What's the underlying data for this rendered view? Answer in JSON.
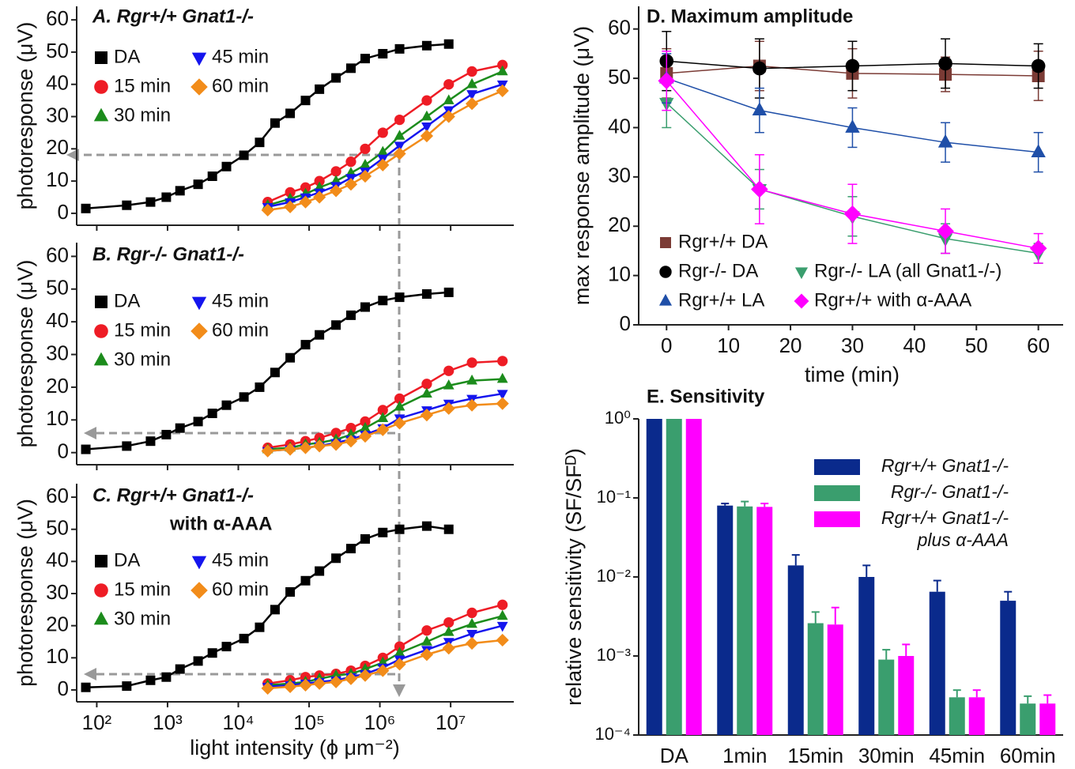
{
  "chart_data": [
    {
      "type": "line",
      "title": "A. Rgr+/+ Gnat1-/-",
      "y_label": "photoresponse (μV)",
      "xscale": "log",
      "xlim": [
        52,
        78000000
      ],
      "ylim": [
        -3.7,
        64.2
      ],
      "yticks": [
        0,
        10,
        20,
        30,
        40,
        50,
        60
      ],
      "legend": "upper left",
      "series": [
        {
          "name": "DA",
          "color": "#000000",
          "marker": "square",
          "x": [
            70,
            265,
            575,
            960,
            1500,
            2700,
            4300,
            6800,
            12000,
            20000,
            33000,
            54000,
            89000,
            140000,
            240000,
            390000,
            620000,
            1100000,
            1900000,
            4600000,
            9400000
          ],
          "values": [
            1.5,
            2.5,
            3.5,
            5,
            7,
            9,
            11.5,
            14.5,
            18,
            22,
            28,
            31,
            35,
            38.5,
            42,
            45,
            48,
            49.5,
            51,
            52,
            52.5
          ]
        },
        {
          "name": "15 min",
          "color": "#ee1c25",
          "marker": "circle",
          "x": [
            26000,
            54000,
            89000,
            140000,
            240000,
            390000,
            620000,
            1100000,
            1900000,
            4600000,
            9400000,
            20000000,
            54000000
          ],
          "values": [
            3.5,
            6.5,
            8,
            10,
            13,
            16,
            20,
            25,
            29,
            35,
            40,
            44,
            46
          ]
        },
        {
          "name": "30 min",
          "color": "#1c8c1c",
          "marker": "triangle-up",
          "x": [
            26000,
            54000,
            89000,
            140000,
            240000,
            390000,
            620000,
            1100000,
            1900000,
            4600000,
            9400000,
            20000000,
            54000000
          ],
          "values": [
            2.5,
            4.5,
            6,
            8,
            10,
            12.5,
            15,
            19,
            24,
            30,
            35,
            40,
            44
          ]
        },
        {
          "name": "45 min",
          "color": "#1515ee",
          "marker": "triangle-down",
          "x": [
            26000,
            54000,
            89000,
            140000,
            240000,
            390000,
            620000,
            1100000,
            1900000,
            4600000,
            9400000,
            20000000,
            54000000
          ],
          "values": [
            2,
            3.5,
            5,
            6.5,
            8.5,
            11,
            13,
            17,
            21,
            27,
            32,
            37,
            40
          ]
        },
        {
          "name": "60 min",
          "color": "#f28c1a",
          "marker": "diamond",
          "x": [
            26000,
            54000,
            89000,
            140000,
            240000,
            390000,
            620000,
            1100000,
            1900000,
            4600000,
            9400000,
            20000000,
            54000000
          ],
          "values": [
            1,
            2,
            3.5,
            5,
            7,
            9,
            11.5,
            15,
            18.5,
            24,
            30,
            34,
            38
          ]
        }
      ]
    },
    {
      "type": "line",
      "title": "B. Rgr-/- Gnat1-/-",
      "y_label": "photoresponse (μV)",
      "xscale": "log",
      "xlim": [
        52,
        78000000
      ],
      "ylim": [
        -3.7,
        64.2
      ],
      "yticks": [
        0,
        10,
        20,
        30,
        40,
        50,
        60
      ],
      "legend": "upper left",
      "series": [
        {
          "name": "DA",
          "color": "#000000",
          "marker": "square",
          "x": [
            70,
            265,
            575,
            960,
            1500,
            2700,
            4300,
            6800,
            12000,
            20000,
            33000,
            54000,
            89000,
            140000,
            240000,
            390000,
            620000,
            1100000,
            1900000,
            4600000,
            9400000
          ],
          "values": [
            1,
            2,
            3.5,
            5.5,
            7.5,
            9.5,
            12,
            14.5,
            17,
            20,
            24.5,
            29,
            33,
            36,
            39,
            42,
            44.5,
            46.5,
            47.5,
            48.5,
            49
          ]
        },
        {
          "name": "15 min",
          "color": "#ee1c25",
          "marker": "circle",
          "x": [
            26000,
            54000,
            89000,
            140000,
            240000,
            390000,
            620000,
            1100000,
            1900000,
            4600000,
            9400000,
            20000000,
            54000000
          ],
          "values": [
            1.5,
            2.5,
            3.5,
            4.5,
            6,
            7.5,
            9.5,
            13,
            16.5,
            21,
            25,
            27.5,
            28
          ]
        },
        {
          "name": "30 min",
          "color": "#1c8c1c",
          "marker": "triangle-up",
          "x": [
            26000,
            54000,
            89000,
            140000,
            240000,
            390000,
            620000,
            1100000,
            1900000,
            4600000,
            9400000,
            20000000,
            54000000
          ],
          "values": [
            1,
            1.5,
            2.5,
            3,
            4,
            5.5,
            7.5,
            10.5,
            14,
            18,
            20.5,
            22,
            22.5
          ]
        },
        {
          "name": "45 min",
          "color": "#1515ee",
          "marker": "triangle-down",
          "x": [
            26000,
            54000,
            89000,
            140000,
            240000,
            390000,
            620000,
            1100000,
            1900000,
            4600000,
            9400000,
            20000000,
            54000000
          ],
          "values": [
            0.5,
            1,
            1.5,
            2,
            3,
            4,
            5.5,
            7.5,
            10.5,
            13,
            15,
            16.5,
            18
          ]
        },
        {
          "name": "60 min",
          "color": "#f28c1a",
          "marker": "diamond",
          "x": [
            26000,
            54000,
            89000,
            140000,
            240000,
            390000,
            620000,
            1100000,
            1900000,
            4600000,
            9400000,
            20000000,
            54000000
          ],
          "values": [
            0.5,
            1,
            1.5,
            2,
            2.5,
            3.5,
            5,
            7,
            9,
            11.5,
            13.5,
            14.5,
            15
          ]
        }
      ]
    },
    {
      "type": "line",
      "title": "C. Rgr+/+ Gnat1-/-",
      "subtitle": "with α-AAA",
      "y_label": "photoresponse (μV)",
      "x_label": "light intensity (ϕ μm⁻²)",
      "xscale": "log",
      "xlim": [
        52,
        78000000
      ],
      "ylim": [
        -3.7,
        64.2
      ],
      "yticks": [
        0,
        10,
        20,
        30,
        40,
        50,
        60
      ],
      "xticks": [
        {
          "value": 100,
          "label": "10²"
        },
        {
          "value": 1000,
          "label": "10³"
        },
        {
          "value": 10000,
          "label": "10⁴"
        },
        {
          "value": 100000,
          "label": "10⁵"
        },
        {
          "value": 1000000,
          "label": "10⁶"
        },
        {
          "value": 10000000,
          "label": "10⁷"
        }
      ],
      "legend": "upper left",
      "series": [
        {
          "name": "DA",
          "color": "#000000",
          "marker": "square",
          "x": [
            70,
            265,
            575,
            960,
            1500,
            2700,
            4300,
            6800,
            12000,
            20000,
            33000,
            54000,
            89000,
            140000,
            240000,
            390000,
            620000,
            1100000,
            1900000,
            4600000,
            9400000
          ],
          "values": [
            0.8,
            1.2,
            3,
            4,
            6.5,
            9,
            11.5,
            13.5,
            16,
            19.5,
            25,
            30.5,
            34,
            37,
            41,
            44,
            47,
            49,
            50,
            51,
            50
          ]
        },
        {
          "name": "15 min",
          "color": "#ee1c25",
          "marker": "circle",
          "x": [
            26000,
            54000,
            89000,
            140000,
            240000,
            390000,
            620000,
            1100000,
            1900000,
            4600000,
            9400000,
            20000000,
            54000000
          ],
          "values": [
            2,
            3,
            4,
            4.5,
            5,
            6,
            7.5,
            10,
            13.5,
            18.5,
            21,
            24,
            26.5
          ]
        },
        {
          "name": "30 min",
          "color": "#1c8c1c",
          "marker": "triangle-up",
          "x": [
            26000,
            54000,
            89000,
            140000,
            240000,
            390000,
            620000,
            1100000,
            1900000,
            4600000,
            9400000,
            20000000,
            54000000
          ],
          "values": [
            1.5,
            2,
            2.5,
            3.5,
            4.5,
            5,
            6.5,
            8.5,
            11.5,
            15,
            18,
            20.5,
            23
          ]
        },
        {
          "name": "45 min",
          "color": "#1515ee",
          "marker": "triangle-down",
          "x": [
            26000,
            54000,
            89000,
            140000,
            240000,
            390000,
            620000,
            1100000,
            1900000,
            4600000,
            9400000,
            20000000,
            54000000
          ],
          "values": [
            1,
            1.5,
            2,
            2.5,
            3,
            4,
            5,
            7,
            9.5,
            12.5,
            15,
            17.5,
            20
          ]
        },
        {
          "name": "60 min",
          "color": "#f28c1a",
          "marker": "diamond",
          "x": [
            26000,
            54000,
            89000,
            140000,
            240000,
            390000,
            620000,
            1100000,
            1900000,
            4600000,
            9400000,
            20000000,
            54000000
          ],
          "values": [
            0.5,
            1,
            1.5,
            2,
            2.5,
            3.5,
            4.5,
            6,
            8,
            11,
            13,
            14.5,
            15.5
          ]
        }
      ]
    },
    {
      "type": "line",
      "title": "D. Maximum amplitude",
      "x_label": "time (min)",
      "y_label": "max response amplitude (μV)",
      "xlim": [
        -4.5,
        64
      ],
      "ylim": [
        0,
        64.6
      ],
      "xticks": [
        0,
        10,
        20,
        30,
        40,
        50,
        60
      ],
      "yticks": [
        0,
        10,
        20,
        30,
        40,
        50,
        60
      ],
      "legend": "lower left",
      "x": [
        0,
        15,
        30,
        45,
        60
      ],
      "series": [
        {
          "name": "Rgr+/+ DA",
          "color": "#7b3b35",
          "marker": "square",
          "values": [
            51,
            52.5,
            51,
            50.8,
            50.5
          ],
          "errors": [
            5,
            5,
            5,
            3.5,
            5
          ]
        },
        {
          "name": "Rgr-/- DA",
          "color": "#000000",
          "marker": "circle",
          "values": [
            53.5,
            52,
            52.5,
            53,
            52.5
          ],
          "errors": [
            6,
            6,
            5,
            5,
            4.5
          ]
        },
        {
          "name": "Rgr-/- LA (all Gnat1-/-)",
          "color": "#3a9e6e",
          "marker": "triangle-down",
          "values": [
            45,
            27.5,
            22,
            17.5,
            14.5
          ],
          "errors": [
            5,
            4,
            4,
            3,
            2
          ]
        },
        {
          "name": "Rgr+/+ LA",
          "color": "#1f4fa8",
          "marker": "triangle-up",
          "values": [
            50,
            43.5,
            40,
            37,
            35
          ],
          "errors": [
            5,
            4.5,
            4,
            4,
            4
          ]
        },
        {
          "name": "Rgr+/+ with α-AAA",
          "color": "#ff00ff",
          "marker": "diamond",
          "values": [
            49.5,
            27.5,
            22.5,
            19,
            15.5
          ],
          "errors": [
            6,
            7,
            6,
            4.5,
            3
          ]
        }
      ]
    },
    {
      "type": "bar",
      "title": "E. Sensitivity",
      "y_label": "relative sensitivity (SF/SFᴰ)",
      "yscale": "log",
      "ylim": [
        0.0001,
        1
      ],
      "yticks": [
        {
          "value": 1,
          "label": "10⁰"
        },
        {
          "value": 0.1,
          "label": "10⁻¹"
        },
        {
          "value": 0.01,
          "label": "10⁻²"
        },
        {
          "value": 0.001,
          "label": "10⁻³"
        },
        {
          "value": 0.0001,
          "label": "10⁻⁴"
        }
      ],
      "categories": [
        "DA",
        "1min",
        "15min",
        "30min",
        "45min",
        "60min"
      ],
      "legend": "upper right",
      "series": [
        {
          "name": "Rgr+/+ Gnat1-/-",
          "color": "#0a2a8c",
          "values": [
            1,
            0.08,
            0.014,
            0.01,
            0.0065,
            0.005
          ],
          "errors": [
            null,
            0.005,
            0.005,
            0.004,
            0.0025,
            0.0015
          ]
        },
        {
          "name": "Rgr-/- Gnat1-/-",
          "color": "#3a9e6e",
          "values": [
            1,
            0.078,
            0.0026,
            0.0009,
            0.0003,
            0.00025
          ],
          "errors": [
            null,
            0.012,
            0.001,
            0.0003,
            7e-05,
            6e-05
          ]
        },
        {
          "name": "Rgr+/+ Gnat1-/- plus α-AAA",
          "color": "#ff00ff",
          "values": [
            1,
            0.077,
            0.0025,
            0.001,
            0.0003,
            0.00025
          ],
          "errors": [
            null,
            0.008,
            0.0016,
            0.0004,
            7e-05,
            7e-05
          ]
        }
      ]
    }
  ]
}
